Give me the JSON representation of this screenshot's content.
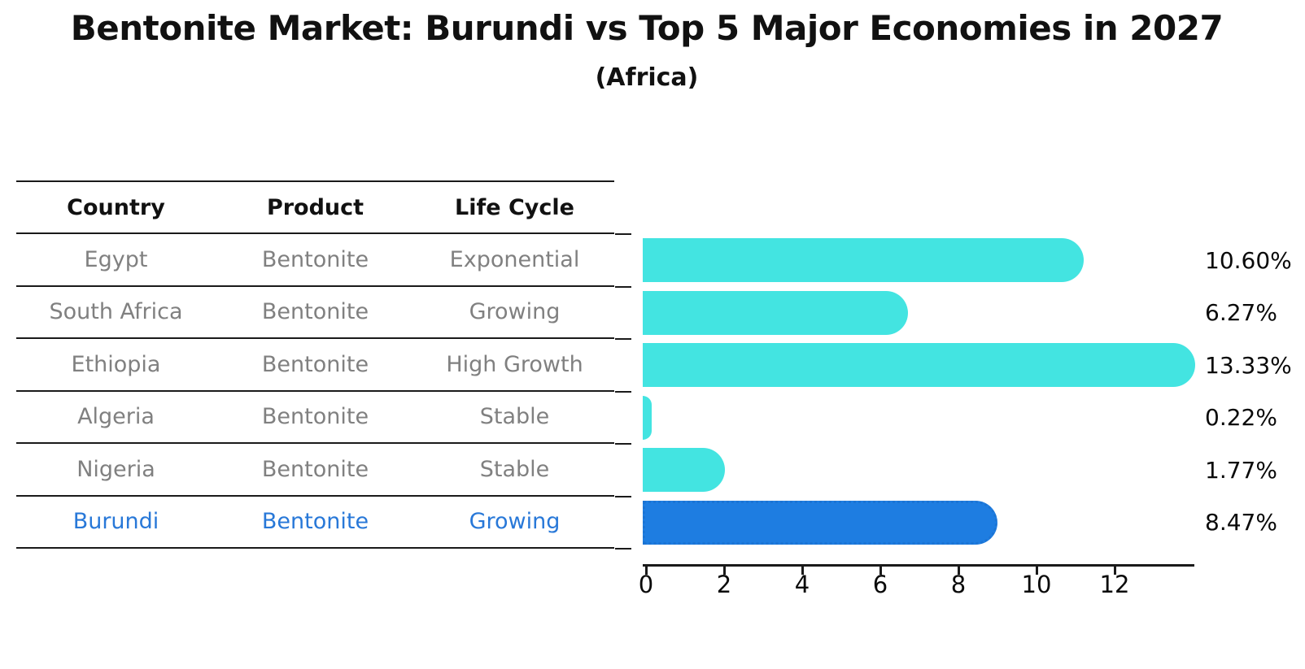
{
  "title": "Bentonite Market: Burundi vs Top 5 Major Economies in 2027",
  "subtitle": "(Africa)",
  "table": {
    "headers": [
      "Country",
      "Product",
      "Life Cycle"
    ],
    "rows": [
      {
        "country": "Egypt",
        "product": "Bentonite",
        "life_cycle": "Exponential",
        "highlight": false
      },
      {
        "country": "South Africa",
        "product": "Bentonite",
        "life_cycle": "Growing",
        "highlight": false
      },
      {
        "country": "Ethiopia",
        "product": "Bentonite",
        "life_cycle": "High Growth",
        "highlight": false
      },
      {
        "country": "Algeria",
        "product": "Bentonite",
        "life_cycle": "Stable",
        "highlight": false
      },
      {
        "country": "Nigeria",
        "product": "Bentonite",
        "life_cycle": "Stable",
        "highlight": false
      },
      {
        "country": "Burundi",
        "product": "Bentonite",
        "life_cycle": "Growing",
        "highlight": true
      }
    ]
  },
  "chart_data": {
    "type": "bar",
    "orientation": "horizontal",
    "title": "Bentonite Market: Burundi vs Top 5 Major Economies in 2027 (Africa)",
    "categories": [
      "Egypt",
      "South Africa",
      "Ethiopia",
      "Algeria",
      "Nigeria",
      "Burundi"
    ],
    "values": [
      10.6,
      6.27,
      13.33,
      0.22,
      1.77,
      8.47
    ],
    "value_labels": [
      "10.60%",
      "6.27%",
      "13.33%",
      "0.22%",
      "1.77%",
      "8.47%"
    ],
    "unit": "percent",
    "xlim": [
      0,
      14
    ],
    "xticks": [
      0,
      2,
      4,
      6,
      8,
      10,
      12
    ],
    "xtick_labels": [
      "0",
      "2",
      "4",
      "6",
      "8",
      "10",
      "12"
    ],
    "grid": false,
    "legend": false,
    "highlight_index": 5
  },
  "colors": {
    "bar_default": "#43E4E1",
    "bar_highlight": "#1E7DE1",
    "bar_highlight_border": "#1B74D4",
    "highlight_text": "#2878D8",
    "table_text": "#808080",
    "header_text": "#111111",
    "axis": "#1a1a1a"
  }
}
